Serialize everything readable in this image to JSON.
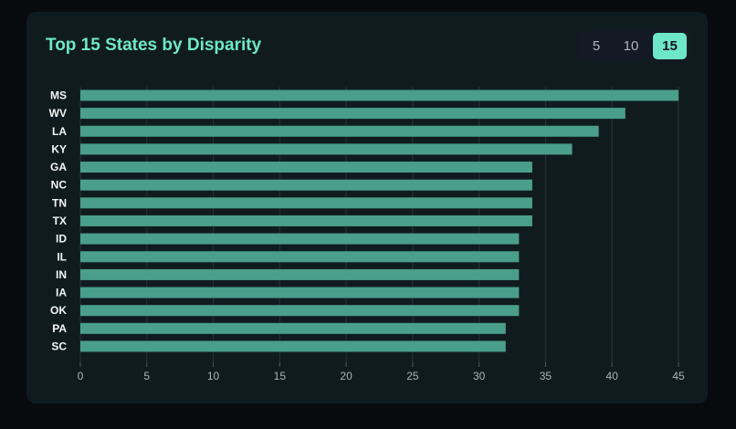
{
  "header": {
    "title": "Top 15 States by Disparity"
  },
  "toggle": {
    "options": [
      "5",
      "10",
      "15"
    ],
    "selected": "15"
  },
  "colors": {
    "bar": "#4a9e8c",
    "accent": "#6ee7c8",
    "title": "#6ee7c7"
  },
  "chart_data": {
    "type": "bar",
    "orientation": "horizontal",
    "categories": [
      "MS",
      "WV",
      "LA",
      "KY",
      "GA",
      "NC",
      "TN",
      "TX",
      "ID",
      "IL",
      "IN",
      "IA",
      "OK",
      "PA",
      "SC"
    ],
    "values": [
      45,
      41,
      39,
      37,
      34,
      34,
      34,
      34,
      33,
      33,
      33,
      33,
      33,
      32,
      32
    ],
    "xlim": [
      0,
      45
    ],
    "xticks": [
      "0",
      "5",
      "10",
      "15",
      "20",
      "25",
      "30",
      "35",
      "40",
      "45"
    ],
    "grid": "vertical"
  }
}
